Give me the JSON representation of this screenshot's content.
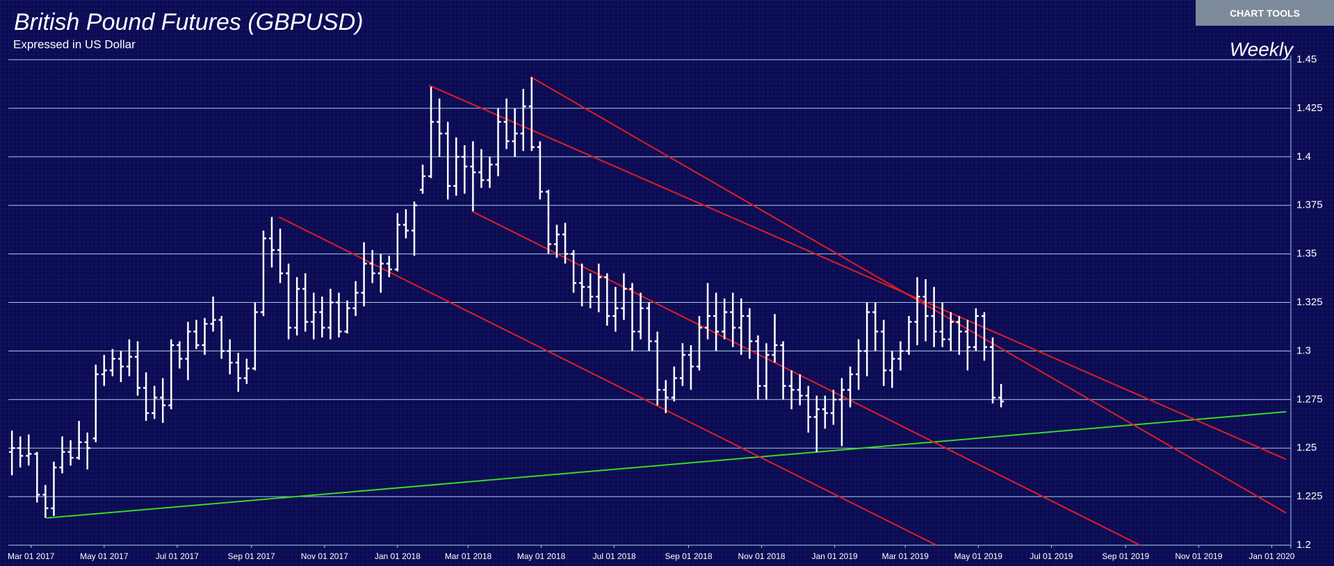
{
  "chart_data": {
    "type": "ohlc",
    "title": "British Pound Futures (GBPUSD)",
    "subtitle": "Expressed in US Dollar",
    "period_label": "Weekly",
    "button": "CHART TOOLS",
    "bar_color": "#ffffff",
    "grid": true,
    "grid_color": "#a6cfe6",
    "x": [
      "2017-02-13",
      "2017-02-20",
      "2017-02-27",
      "2017-03-06",
      "2017-03-13",
      "2017-03-20",
      "2017-03-27",
      "2017-04-03",
      "2017-04-10",
      "2017-04-17",
      "2017-04-24",
      "2017-05-01",
      "2017-05-08",
      "2017-05-15",
      "2017-05-22",
      "2017-05-29",
      "2017-06-05",
      "2017-06-12",
      "2017-06-19",
      "2017-06-26",
      "2017-07-03",
      "2017-07-10",
      "2017-07-17",
      "2017-07-24",
      "2017-07-31",
      "2017-08-07",
      "2017-08-14",
      "2017-08-21",
      "2017-08-28",
      "2017-09-04",
      "2017-09-11",
      "2017-09-18",
      "2017-09-25",
      "2017-10-02",
      "2017-10-09",
      "2017-10-16",
      "2017-10-23",
      "2017-10-30",
      "2017-11-06",
      "2017-11-13",
      "2017-11-20",
      "2017-11-27",
      "2017-12-04",
      "2017-12-11",
      "2017-12-18",
      "2017-12-25",
      "2018-01-01",
      "2018-01-08",
      "2018-01-15",
      "2018-01-22",
      "2018-01-29",
      "2018-02-05",
      "2018-02-12",
      "2018-02-19",
      "2018-02-26",
      "2018-03-05",
      "2018-03-12",
      "2018-03-19",
      "2018-03-26",
      "2018-04-02",
      "2018-04-09",
      "2018-04-16",
      "2018-04-23",
      "2018-04-30",
      "2018-05-07",
      "2018-05-14",
      "2018-05-21",
      "2018-05-28",
      "2018-06-04",
      "2018-06-11",
      "2018-06-18",
      "2018-06-25",
      "2018-07-02",
      "2018-07-09",
      "2018-07-16",
      "2018-07-23",
      "2018-07-30",
      "2018-08-06",
      "2018-08-13",
      "2018-08-20",
      "2018-08-27",
      "2018-09-03",
      "2018-09-10",
      "2018-09-17",
      "2018-09-24",
      "2018-10-01",
      "2018-10-08",
      "2018-10-15",
      "2018-10-22",
      "2018-10-29",
      "2018-11-05",
      "2018-11-12",
      "2018-11-19",
      "2018-11-26",
      "2018-12-03",
      "2018-12-10",
      "2018-12-17",
      "2018-12-24",
      "2018-12-31",
      "2019-01-07",
      "2019-01-14",
      "2019-01-21",
      "2019-01-28",
      "2019-02-04",
      "2019-02-11",
      "2019-02-18",
      "2019-02-25",
      "2019-03-04",
      "2019-03-11",
      "2019-03-18",
      "2019-03-25",
      "2019-04-01",
      "2019-04-08",
      "2019-04-15",
      "2019-04-22",
      "2019-04-29",
      "2019-05-06",
      "2019-05-13",
      "2019-05-20"
    ],
    "open": [
      1.248,
      1.25,
      1.246,
      1.247,
      1.226,
      1.219,
      1.24,
      1.248,
      1.245,
      1.253,
      1.255,
      1.288,
      1.29,
      1.296,
      1.292,
      1.297,
      1.281,
      1.268,
      1.276,
      1.272,
      1.303,
      1.296,
      1.31,
      1.303,
      1.314,
      1.316,
      1.3,
      1.294,
      1.286,
      1.291,
      1.32,
      1.358,
      1.352,
      1.34,
      1.312,
      1.332,
      1.315,
      1.32,
      1.312,
      1.325,
      1.31,
      1.322,
      1.33,
      1.345,
      1.34,
      1.345,
      1.342,
      1.365,
      1.362,
      1.383,
      1.39,
      1.418,
      1.412,
      1.385,
      1.4,
      1.395,
      1.392,
      1.388,
      1.396,
      1.418,
      1.408,
      1.412,
      1.426,
      1.405,
      1.382,
      1.355,
      1.36,
      1.35,
      1.335,
      1.333,
      1.328,
      1.338,
      1.318,
      1.322,
      1.332,
      1.31,
      1.322,
      1.305,
      1.28,
      1.276,
      1.286,
      1.298,
      1.292,
      1.312,
      1.318,
      1.31,
      1.32,
      1.312,
      1.318,
      1.305,
      1.282,
      1.298,
      1.303,
      1.282,
      1.28,
      1.277,
      1.266,
      1.27,
      1.268,
      1.275,
      1.28,
      1.288,
      1.3,
      1.32,
      1.31,
      1.29,
      1.296,
      1.3,
      1.315,
      1.328,
      1.318,
      1.31,
      1.306,
      1.315,
      1.31,
      1.302,
      1.318,
      1.302,
      1.276
    ],
    "high": [
      1.259,
      1.256,
      1.257,
      1.248,
      1.231,
      1.243,
      1.256,
      1.254,
      1.264,
      1.258,
      1.293,
      1.298,
      1.301,
      1.3,
      1.306,
      1.305,
      1.289,
      1.282,
      1.286,
      1.306,
      1.305,
      1.315,
      1.316,
      1.317,
      1.328,
      1.318,
      1.306,
      1.299,
      1.296,
      1.325,
      1.362,
      1.369,
      1.363,
      1.345,
      1.338,
      1.34,
      1.33,
      1.328,
      1.332,
      1.33,
      1.326,
      1.336,
      1.356,
      1.352,
      1.35,
      1.349,
      1.371,
      1.373,
      1.377,
      1.396,
      1.436,
      1.43,
      1.418,
      1.41,
      1.406,
      1.408,
      1.404,
      1.4,
      1.425,
      1.43,
      1.425,
      1.435,
      1.441,
      1.408,
      1.383,
      1.365,
      1.366,
      1.352,
      1.345,
      1.34,
      1.345,
      1.34,
      1.333,
      1.34,
      1.335,
      1.33,
      1.325,
      1.31,
      1.285,
      1.292,
      1.304,
      1.303,
      1.318,
      1.335,
      1.33,
      1.327,
      1.33,
      1.327,
      1.322,
      1.308,
      1.304,
      1.319,
      1.305,
      1.29,
      1.288,
      1.282,
      1.277,
      1.277,
      1.28,
      1.286,
      1.292,
      1.306,
      1.325,
      1.325,
      1.316,
      1.3,
      1.305,
      1.318,
      1.338,
      1.337,
      1.333,
      1.325,
      1.32,
      1.318,
      1.316,
      1.322,
      1.32,
      1.307,
      1.283
    ],
    "low": [
      1.236,
      1.24,
      1.241,
      1.222,
      1.214,
      1.215,
      1.237,
      1.241,
      1.244,
      1.239,
      1.253,
      1.282,
      1.287,
      1.284,
      1.287,
      1.277,
      1.264,
      1.265,
      1.263,
      1.27,
      1.291,
      1.285,
      1.301,
      1.298,
      1.31,
      1.296,
      1.288,
      1.279,
      1.283,
      1.29,
      1.318,
      1.343,
      1.335,
      1.306,
      1.308,
      1.31,
      1.306,
      1.307,
      1.306,
      1.307,
      1.309,
      1.318,
      1.323,
      1.335,
      1.33,
      1.338,
      1.341,
      1.358,
      1.349,
      1.381,
      1.389,
      1.4,
      1.378,
      1.38,
      1.381,
      1.372,
      1.384,
      1.384,
      1.39,
      1.404,
      1.4,
      1.403,
      1.403,
      1.378,
      1.35,
      1.348,
      1.345,
      1.33,
      1.323,
      1.322,
      1.32,
      1.313,
      1.31,
      1.316,
      1.3,
      1.306,
      1.3,
      1.272,
      1.268,
      1.274,
      1.282,
      1.28,
      1.29,
      1.306,
      1.3,
      1.306,
      1.302,
      1.298,
      1.296,
      1.275,
      1.275,
      1.294,
      1.275,
      1.27,
      1.272,
      1.258,
      1.248,
      1.26,
      1.262,
      1.251,
      1.271,
      1.28,
      1.287,
      1.3,
      1.282,
      1.281,
      1.29,
      1.298,
      1.303,
      1.305,
      1.302,
      1.302,
      1.3,
      1.298,
      1.29,
      1.3,
      1.295,
      1.273,
      1.271
    ],
    "close": [
      1.25,
      1.246,
      1.247,
      1.226,
      1.219,
      1.24,
      1.248,
      1.245,
      1.253,
      1.25,
      1.288,
      1.29,
      1.296,
      1.292,
      1.297,
      1.281,
      1.268,
      1.276,
      1.272,
      1.303,
      1.296,
      1.31,
      1.303,
      1.314,
      1.316,
      1.3,
      1.294,
      1.286,
      1.291,
      1.32,
      1.358,
      1.352,
      1.34,
      1.312,
      1.332,
      1.315,
      1.32,
      1.312,
      1.325,
      1.31,
      1.322,
      1.33,
      1.345,
      1.34,
      1.345,
      1.342,
      1.365,
      1.362,
      1.375,
      1.39,
      1.418,
      1.412,
      1.385,
      1.4,
      1.395,
      1.392,
      1.388,
      1.396,
      1.418,
      1.408,
      1.412,
      1.426,
      1.405,
      1.382,
      1.355,
      1.36,
      1.35,
      1.335,
      1.333,
      1.328,
      1.338,
      1.318,
      1.322,
      1.332,
      1.31,
      1.322,
      1.305,
      1.28,
      1.276,
      1.286,
      1.298,
      1.292,
      1.312,
      1.318,
      1.31,
      1.32,
      1.312,
      1.318,
      1.305,
      1.282,
      1.298,
      1.303,
      1.282,
      1.28,
      1.277,
      1.266,
      1.27,
      1.268,
      1.275,
      1.28,
      1.288,
      1.3,
      1.32,
      1.31,
      1.29,
      1.296,
      1.3,
      1.315,
      1.328,
      1.318,
      1.31,
      1.306,
      1.315,
      1.31,
      1.302,
      1.318,
      1.302,
      1.276,
      1.274
    ],
    "xlim": [
      "2017-02-10",
      "2020-01-17"
    ],
    "ylim": [
      1.2,
      1.45
    ],
    "yticks": [
      1.2,
      1.225,
      1.25,
      1.275,
      1.3,
      1.325,
      1.35,
      1.375,
      1.4,
      1.425,
      1.45
    ],
    "xticks": [
      {
        "value": "2017-03-01",
        "label": "Mar 01 2017"
      },
      {
        "value": "2017-05-01",
        "label": "May 01 2017"
      },
      {
        "value": "2017-07-01",
        "label": "Jul 01 2017"
      },
      {
        "value": "2017-09-01",
        "label": "Sep 01 2017"
      },
      {
        "value": "2017-11-01",
        "label": "Nov 01 2017"
      },
      {
        "value": "2018-01-01",
        "label": "Jan 01 2018"
      },
      {
        "value": "2018-03-01",
        "label": "Mar 01 2018"
      },
      {
        "value": "2018-05-01",
        "label": "May 01 2018"
      },
      {
        "value": "2018-07-01",
        "label": "Jul 01 2018"
      },
      {
        "value": "2018-09-01",
        "label": "Sep 01 2018"
      },
      {
        "value": "2018-11-01",
        "label": "Nov 01 2018"
      },
      {
        "value": "2019-01-01",
        "label": "Jan 01 2019"
      },
      {
        "value": "2019-03-01",
        "label": "Mar 01 2019"
      },
      {
        "value": "2019-05-01",
        "label": "May 01 2019"
      },
      {
        "value": "2019-07-01",
        "label": "Jul 01 2019"
      },
      {
        "value": "2019-09-01",
        "label": "Sep 01 2019"
      },
      {
        "value": "2019-11-01",
        "label": "Nov 01 2019"
      },
      {
        "value": "2020-01-01",
        "label": "Jan 01 2020"
      }
    ],
    "trend_lines": [
      {
        "color": "#33dd22",
        "x": [
          "2017-03-14",
          "2020-01-13"
        ],
        "y": [
          1.214,
          1.2687
        ]
      },
      {
        "color": "#e01e1e",
        "x": [
          "2017-09-24",
          "2019-03-27"
        ],
        "y": [
          1.369,
          1.2
        ]
      },
      {
        "color": "#e01e1e",
        "x": [
          "2018-01-27",
          "2020-01-13"
        ],
        "y": [
          1.4369,
          1.2442
        ]
      },
      {
        "color": "#e01e1e",
        "x": [
          "2018-03-04",
          "2019-09-13"
        ],
        "y": [
          1.372,
          1.2
        ]
      },
      {
        "color": "#e01e1e",
        "x": [
          "2018-04-22",
          "2020-01-13"
        ],
        "y": [
          1.4412,
          1.2166
        ]
      }
    ]
  }
}
